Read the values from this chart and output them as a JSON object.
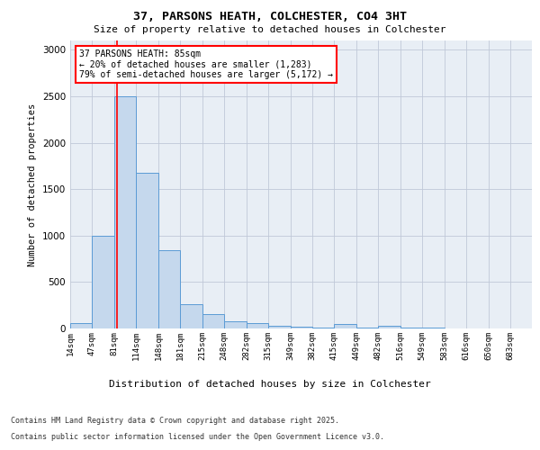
{
  "title1": "37, PARSONS HEATH, COLCHESTER, CO4 3HT",
  "title2": "Size of property relative to detached houses in Colchester",
  "xlabel": "Distribution of detached houses by size in Colchester",
  "ylabel": "Number of detached properties",
  "bins": [
    "14sqm",
    "47sqm",
    "81sqm",
    "114sqm",
    "148sqm",
    "181sqm",
    "215sqm",
    "248sqm",
    "282sqm",
    "315sqm",
    "349sqm",
    "382sqm",
    "415sqm",
    "449sqm",
    "482sqm",
    "516sqm",
    "549sqm",
    "583sqm",
    "616sqm",
    "650sqm",
    "683sqm"
  ],
  "bin_edges": [
    14,
    47,
    81,
    114,
    148,
    181,
    215,
    248,
    282,
    315,
    349,
    382,
    415,
    449,
    482,
    516,
    549,
    583,
    616,
    650,
    683,
    716
  ],
  "counts": [
    60,
    1000,
    2500,
    1680,
    840,
    260,
    155,
    80,
    55,
    25,
    15,
    10,
    45,
    10,
    30,
    5,
    5,
    3,
    2,
    2,
    2
  ],
  "bar_color": "#c5d8ed",
  "bar_edge_color": "#5b9bd5",
  "grid_color": "#c0c8d8",
  "background_color": "#e8eef5",
  "property_size": 85,
  "annotation_text": "37 PARSONS HEATH: 85sqm\n← 20% of detached houses are smaller (1,283)\n79% of semi-detached houses are larger (5,172) →",
  "footnote1": "Contains HM Land Registry data © Crown copyright and database right 2025.",
  "footnote2": "Contains public sector information licensed under the Open Government Licence v3.0.",
  "ylim": [
    0,
    3100
  ],
  "yticks": [
    0,
    500,
    1000,
    1500,
    2000,
    2500,
    3000
  ]
}
